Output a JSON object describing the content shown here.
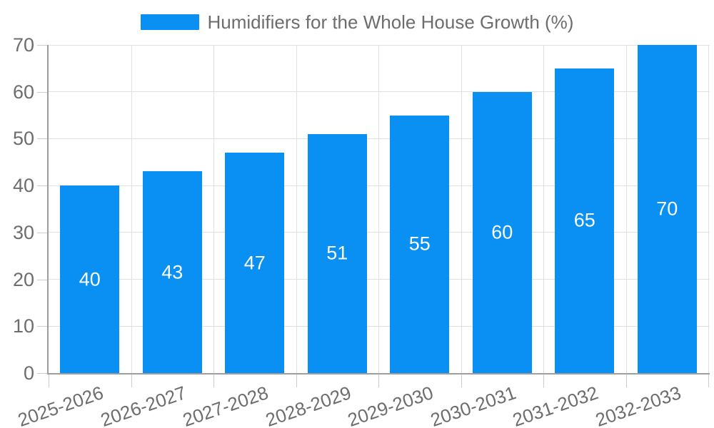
{
  "legend": {
    "label": "Humidifiers for the Whole House Growth (%)"
  },
  "chart_data": {
    "type": "bar",
    "title": "Humidifiers for the Whole House Growth (%)",
    "categories": [
      "2025-2026",
      "2026-2027",
      "2027-2028",
      "2028-2029",
      "2029-2030",
      "2030-2031",
      "2031-2032",
      "2032-2033"
    ],
    "values": [
      40,
      43,
      47,
      51,
      55,
      60,
      65,
      70
    ],
    "value_labels": [
      "40",
      "43",
      "47",
      "51",
      "55",
      "60",
      "65",
      "70"
    ],
    "xlabel": "",
    "ylabel": "",
    "ylim": [
      0,
      70
    ],
    "yticks": [
      0,
      10,
      20,
      30,
      40,
      50,
      60,
      70
    ],
    "grid": true,
    "legend_position": "top-center",
    "value_labels_inside_bars": true,
    "x_labels_rotated": true
  },
  "colors": {
    "bar": "#0a8ff2",
    "text": "#6d6d6d",
    "grid": "#e0e0e0",
    "tick": "#cccccc",
    "axis": "#9e9e9e",
    "value_label": "#ffffff",
    "background": "#ffffff"
  }
}
